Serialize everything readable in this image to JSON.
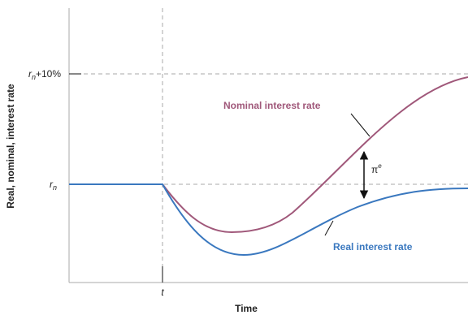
{
  "axes": {
    "y_label": "Real, nominal, interest rate",
    "x_label": "Time",
    "y_ticks": [
      {
        "base": "r",
        "sub": "n",
        "rest": "+10%"
      },
      {
        "base": "r",
        "sub": "n"
      }
    ],
    "x_tick": "t"
  },
  "curves": [
    {
      "label": "Nominal interest rate"
    },
    {
      "label": "Real interest rate"
    }
  ],
  "gap": {
    "base": "π",
    "sup": "e"
  }
}
